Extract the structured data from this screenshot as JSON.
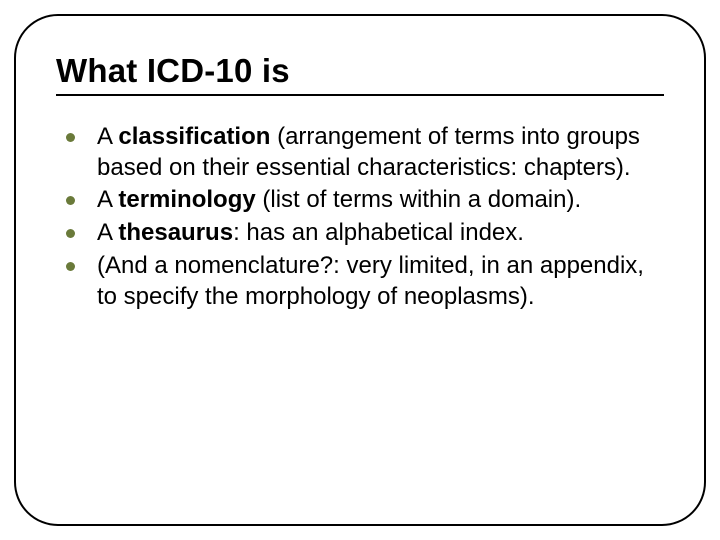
{
  "slide": {
    "title": "What ICD-10 is",
    "title_fontsize": 33,
    "title_color": "#000000",
    "rule_color": "#000000",
    "frame_border_color": "#000000",
    "frame_border_radius": 44,
    "background_color": "#ffffff",
    "bullet_color": "#6a7a3a",
    "bullet_dot_size": 9,
    "body_fontsize": 24,
    "body_color": "#000000",
    "items": [
      {
        "prefix": "A ",
        "bold": "classification",
        "suffix": " (arrangement of terms into groups based on their essential characteristics: chapters)."
      },
      {
        "prefix": "A ",
        "bold": "terminology",
        "suffix": " (list of terms within a domain)."
      },
      {
        "prefix": "A ",
        "bold": "thesaurus",
        "suffix": ": has an alphabetical index."
      },
      {
        "prefix": "",
        "bold": "",
        "suffix": "(And a nomenclature?: very limited, in an appendix, to specify the morphology of neoplasms)."
      }
    ]
  }
}
